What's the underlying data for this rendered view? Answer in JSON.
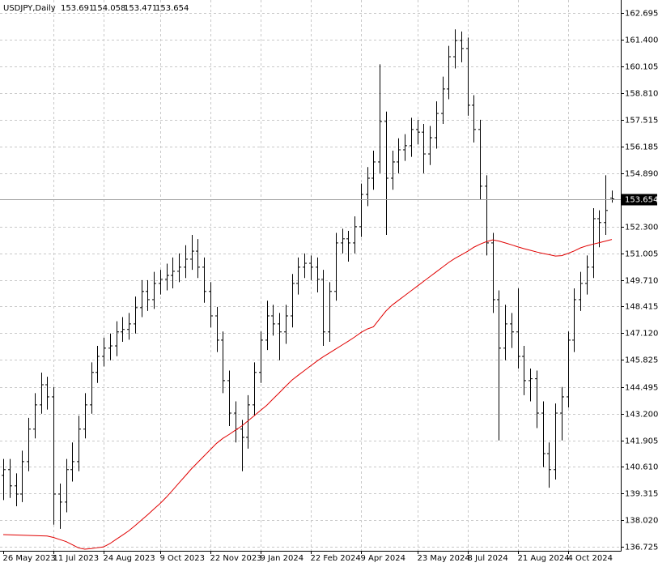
{
  "chart_data": {
    "type": "ohlc",
    "title": "USDJPY,Daily",
    "color": "#000000",
    "ma_color": "#e00000",
    "grid": true,
    "ylim": [
      136.53,
      163.33
    ],
    "yticks": [
      162.695,
      {
        "value": 161.4,
        "label": "161.400"
      },
      160.105,
      {
        "value": 158.81,
        "label": "158.810"
      },
      157.515,
      156.185,
      {
        "value": 154.89,
        "label": "154.890"
      },
      {
        "value": 152.3,
        "label": "152.300"
      },
      151.005,
      {
        "value": 149.71,
        "label": "149.710"
      },
      148.415,
      {
        "value": 147.12,
        "label": "147.120"
      },
      145.825,
      144.495,
      {
        "value": 143.2,
        "label": "143.200"
      },
      141.905,
      {
        "value": 140.61,
        "label": "140.610"
      },
      139.315,
      {
        "value": 138.02,
        "label": "138.020"
      },
      136.725
    ],
    "categories": [
      "26 May 2023",
      null,
      null,
      null,
      null,
      null,
      null,
      null,
      "11 Jul 2023",
      null,
      null,
      null,
      null,
      null,
      null,
      null,
      "24 Aug 2023",
      null,
      null,
      null,
      null,
      null,
      null,
      null,
      null,
      "9 Oct 2023",
      null,
      null,
      null,
      null,
      null,
      null,
      null,
      "22 Nov 2023",
      null,
      null,
      null,
      null,
      null,
      null,
      null,
      "9 Jan 2024",
      null,
      null,
      null,
      null,
      null,
      null,
      null,
      "22 Feb 2024",
      null,
      null,
      null,
      null,
      null,
      null,
      null,
      "9 Apr 2024",
      null,
      null,
      null,
      null,
      null,
      null,
      null,
      null,
      "23 May 2024",
      null,
      null,
      null,
      null,
      null,
      null,
      null,
      "8 Jul 2024",
      null,
      null,
      null,
      null,
      null,
      null,
      null,
      "21 Aug 2024",
      null,
      null,
      null,
      null,
      null,
      null,
      null,
      "4 Oct 2024",
      null,
      null,
      null,
      null,
      null,
      null,
      null
    ],
    "open": [
      140.2,
      140.48,
      139.69,
      139.29,
      140.87,
      142.45,
      143.63,
      144.61,
      144.02,
      139.29,
      138.9,
      140.48,
      140.87,
      142.45,
      143.63,
      145.21,
      145.99,
      146.39,
      146.5,
      147.18,
      147.3,
      147.57,
      148.36,
      149.15,
      148.75,
      149.54,
      149.74,
      149.93,
      150.13,
      150.33,
      150.72,
      151.11,
      150.33,
      149.15,
      147.96,
      146.78,
      144.81,
      143.23,
      142.45,
      142.05,
      143.63,
      145.21,
      146.78,
      147.96,
      147.57,
      147.18,
      147.96,
      149.54,
      150.33,
      150.52,
      150.33,
      149.74,
      147.18,
      149.15,
      151.51,
      151.71,
      151.51,
      152.3,
      153.87,
      154.66,
      155.45,
      157.42,
      154.66,
      155.45,
      156.04,
      156.24,
      157.03,
      156.9,
      155.84,
      156.63,
      157.81,
      159.0,
      160.57,
      161.36,
      160.97,
      158.21,
      157.03,
      154.27,
      151.51,
      148.75,
      146.39,
      147.57,
      147.18,
      145.99,
      144.81,
      144.9,
      143.23,
      141.26,
      140.48,
      143.23,
      144.02,
      146.78,
      148.75,
      149.54,
      150.33,
      152.69,
      152.5,
      153.691
    ],
    "high": [
      141.0,
      141.0,
      140.3,
      141.4,
      143.0,
      144.2,
      145.2,
      145.0,
      144.5,
      139.8,
      141.0,
      141.8,
      143.1,
      144.2,
      145.7,
      146.5,
      146.9,
      147.1,
      147.7,
      147.9,
      148.1,
      148.9,
      149.7,
      149.7,
      150.1,
      150.2,
      150.5,
      150.8,
      151.0,
      151.4,
      151.9,
      151.7,
      150.8,
      149.6,
      148.4,
      147.2,
      145.3,
      143.8,
      142.9,
      144.1,
      145.7,
      147.2,
      148.7,
      148.5,
      148.1,
      148.5,
      150.0,
      150.8,
      151.0,
      150.9,
      150.8,
      150.2,
      149.6,
      152.0,
      152.2,
      152.1,
      152.8,
      154.4,
      155.2,
      156.0,
      160.2,
      157.9,
      156.0,
      156.6,
      156.8,
      157.6,
      157.5,
      157.3,
      157.2,
      158.4,
      159.6,
      161.1,
      161.9,
      161.8,
      161.5,
      158.7,
      157.5,
      154.8,
      152.0,
      149.2,
      148.5,
      148.1,
      149.3,
      146.5,
      145.4,
      145.3,
      143.8,
      141.8,
      143.7,
      144.5,
      147.2,
      149.3,
      150.1,
      150.9,
      153.2,
      153.1,
      154.8,
      154.058
    ],
    "low": [
      139.0,
      139.1,
      138.7,
      138.9,
      140.4,
      142.0,
      143.2,
      143.4,
      137.8,
      137.6,
      138.4,
      139.9,
      140.4,
      142.0,
      143.2,
      144.7,
      145.5,
      145.8,
      146.0,
      146.7,
      146.8,
      147.1,
      147.9,
      148.2,
      148.3,
      149.0,
      149.2,
      149.3,
      149.6,
      149.8,
      150.2,
      149.8,
      148.6,
      147.4,
      146.2,
      144.2,
      142.6,
      141.8,
      140.4,
      141.5,
      143.1,
      144.7,
      146.3,
      147.0,
      145.8,
      146.6,
      147.4,
      149.0,
      149.8,
      149.7,
      149.1,
      146.5,
      146.7,
      148.7,
      151.0,
      150.6,
      151.0,
      151.8,
      153.3,
      154.1,
      154.9,
      151.9,
      154.1,
      154.9,
      155.5,
      155.7,
      156.3,
      154.9,
      155.3,
      156.1,
      157.3,
      158.5,
      160.0,
      160.3,
      157.7,
      156.4,
      153.6,
      150.9,
      148.1,
      141.9,
      145.8,
      146.4,
      145.4,
      144.1,
      143.8,
      142.5,
      140.6,
      139.6,
      140.0,
      141.9,
      143.5,
      146.2,
      148.2,
      149.0,
      149.8,
      151.3,
      151.9,
      153.471
    ],
    "close": [
      140.48,
      139.69,
      139.29,
      140.87,
      142.45,
      143.63,
      144.61,
      144.02,
      139.29,
      138.9,
      140.48,
      140.87,
      142.45,
      143.63,
      145.21,
      145.99,
      146.39,
      146.5,
      147.18,
      147.3,
      147.57,
      148.36,
      149.15,
      148.75,
      149.54,
      149.74,
      149.93,
      150.13,
      150.33,
      150.72,
      151.11,
      150.33,
      149.15,
      147.96,
      146.78,
      144.81,
      143.23,
      142.45,
      142.05,
      143.63,
      145.21,
      146.78,
      147.96,
      147.57,
      147.18,
      147.96,
      149.54,
      150.33,
      150.52,
      150.33,
      149.74,
      147.18,
      149.15,
      151.51,
      151.71,
      151.51,
      152.3,
      153.87,
      154.66,
      155.45,
      157.42,
      154.66,
      155.45,
      156.04,
      156.24,
      157.03,
      156.9,
      155.84,
      156.63,
      157.81,
      159.0,
      160.57,
      161.36,
      160.97,
      158.21,
      157.03,
      154.27,
      151.51,
      148.75,
      146.39,
      147.57,
      147.18,
      145.99,
      144.81,
      144.9,
      143.23,
      141.26,
      140.48,
      143.23,
      144.02,
      146.78,
      148.75,
      149.54,
      150.33,
      152.69,
      152.5,
      153.09,
      153.654
    ],
    "ma_values": [
      137.32,
      137.31,
      137.3,
      137.29,
      137.28,
      137.27,
      137.26,
      137.25,
      137.18,
      137.08,
      136.98,
      136.83,
      136.67,
      136.61,
      136.64,
      136.68,
      136.72,
      136.88,
      137.09,
      137.29,
      137.5,
      137.75,
      138.02,
      138.28,
      138.56,
      138.83,
      139.14,
      139.48,
      139.83,
      140.17,
      140.52,
      140.83,
      141.14,
      141.45,
      141.76,
      142.0,
      142.19,
      142.4,
      142.6,
      142.85,
      143.1,
      143.36,
      143.61,
      143.92,
      144.22,
      144.53,
      144.83,
      145.07,
      145.3,
      145.53,
      145.76,
      145.97,
      146.16,
      146.35,
      146.54,
      146.73,
      146.93,
      147.15,
      147.32,
      147.43,
      147.82,
      148.2,
      148.49,
      148.72,
      148.95,
      149.18,
      149.41,
      149.64,
      149.87,
      150.1,
      150.33,
      150.56,
      150.76,
      150.93,
      151.1,
      151.3,
      151.45,
      151.57,
      151.66,
      151.6,
      151.51,
      151.42,
      151.32,
      151.23,
      151.15,
      151.07,
      151.0,
      150.94,
      150.87,
      150.89,
      151.0,
      151.12,
      151.27,
      151.37,
      151.45,
      151.52,
      151.6,
      151.68
    ]
  }
}
